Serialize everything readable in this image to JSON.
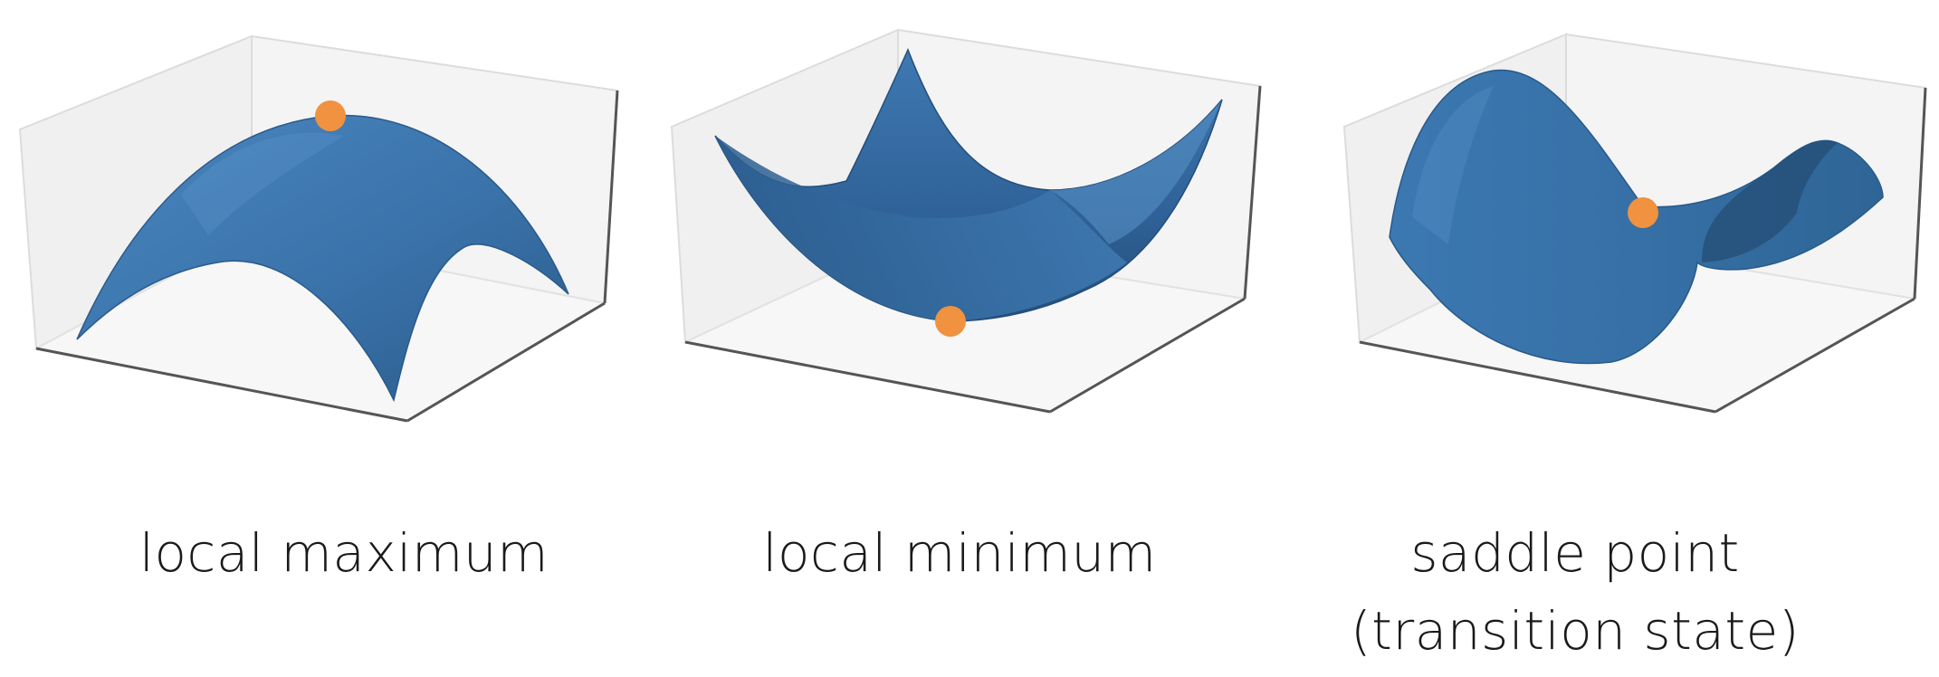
{
  "colors": {
    "surface": "#3b76ae",
    "surface_dark": "#264f78",
    "surface_light": "#5a93c8",
    "point": "#f0923f",
    "pane": "#f1f1f1",
    "pane_edge": "#d9d9d9",
    "axis_line": "#555555",
    "caption_text": "#1a1a1a"
  },
  "panels": [
    {
      "id": "local-maximum",
      "caption_lines": [
        "local maximum"
      ],
      "marker": "orange-dot",
      "surface_shape": "downward paraboloid"
    },
    {
      "id": "local-minimum",
      "caption_lines": [
        "local minimum"
      ],
      "marker": "orange-dot",
      "surface_shape": "upward paraboloid"
    },
    {
      "id": "saddle-point",
      "caption_lines": [
        "saddle point",
        "(transition state)"
      ],
      "marker": "orange-dot",
      "surface_shape": "hyperbolic paraboloid"
    }
  ]
}
